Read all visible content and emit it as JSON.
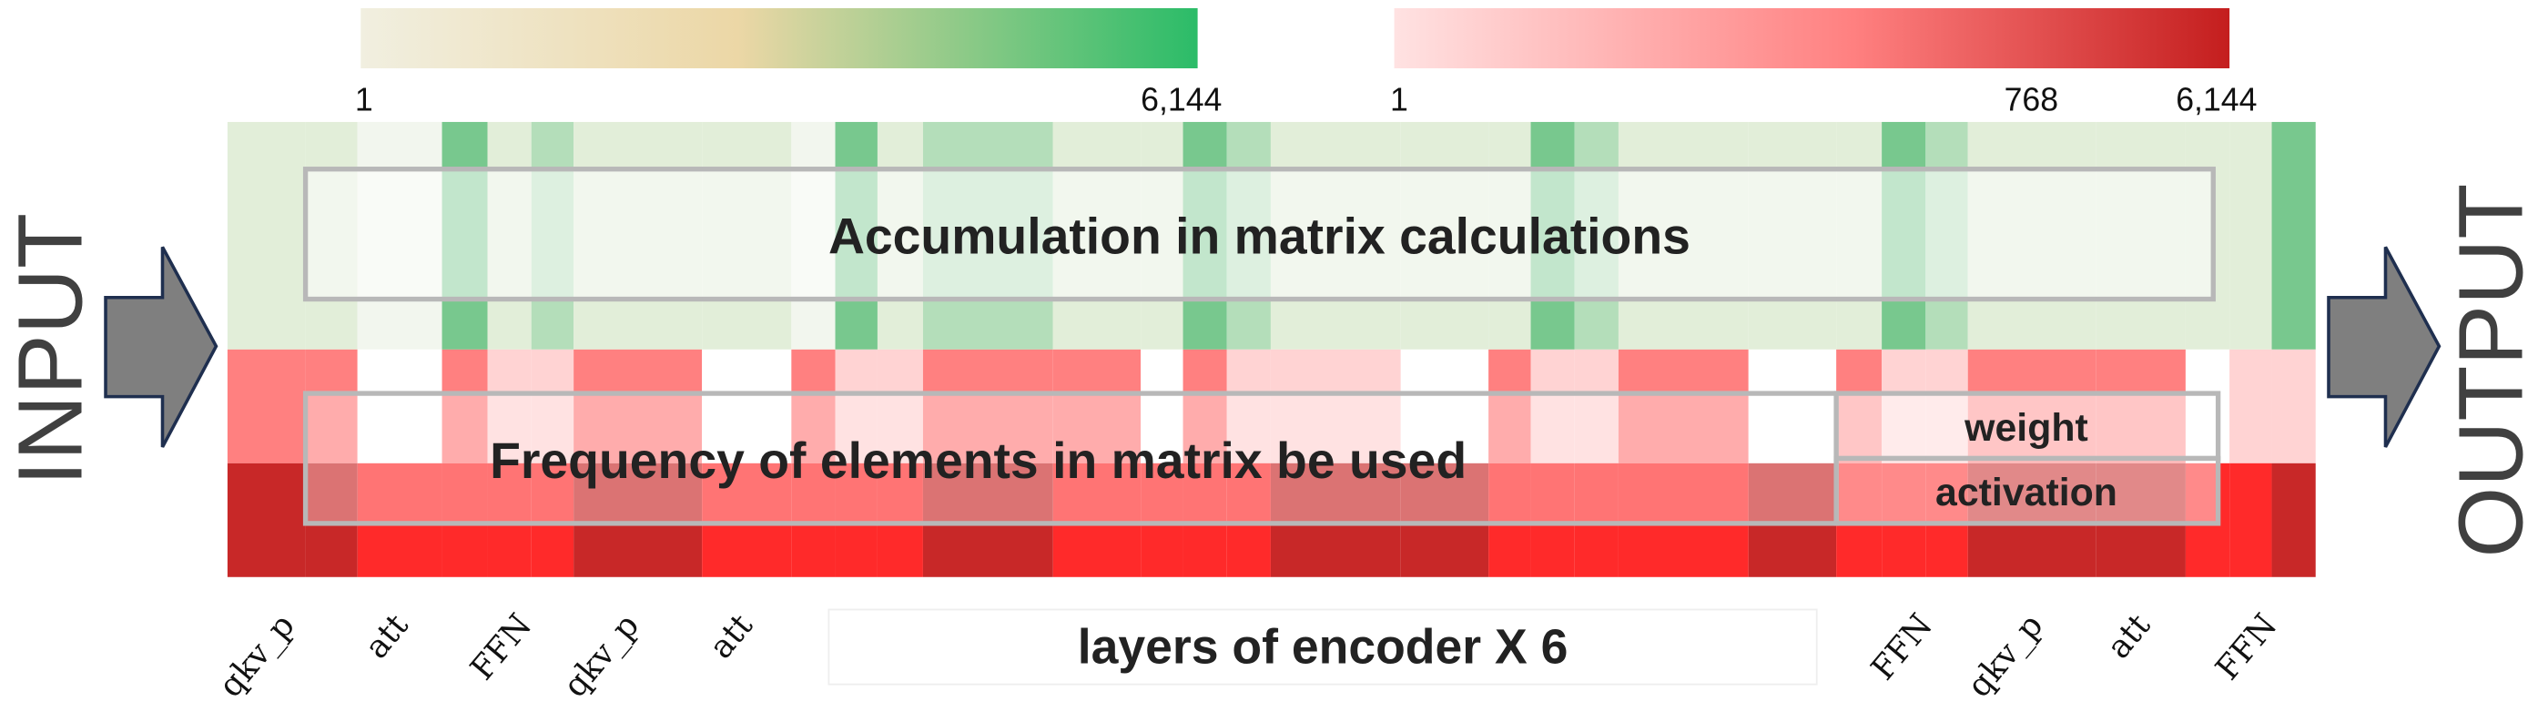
{
  "colorbars": [
    {
      "labels": [
        "1",
        "6,144"
      ]
    },
    {
      "labels": [
        "1",
        "768",
        "6,144"
      ]
    }
  ],
  "input_label": "INPUT",
  "output_label": "OUTPUT",
  "annotations": {
    "accumulation": "Accumulation in matrix calculations",
    "frequency": "Frequency of elements in matrix be used",
    "weight": "weight",
    "activation": "activation"
  },
  "column_labels": [
    "qkv_p",
    "att",
    "FFN",
    "qkv_p",
    "att",
    "FFN",
    "qkv_p",
    "att",
    "FFN"
  ],
  "axis_title": "layers of encoder X 6"
}
